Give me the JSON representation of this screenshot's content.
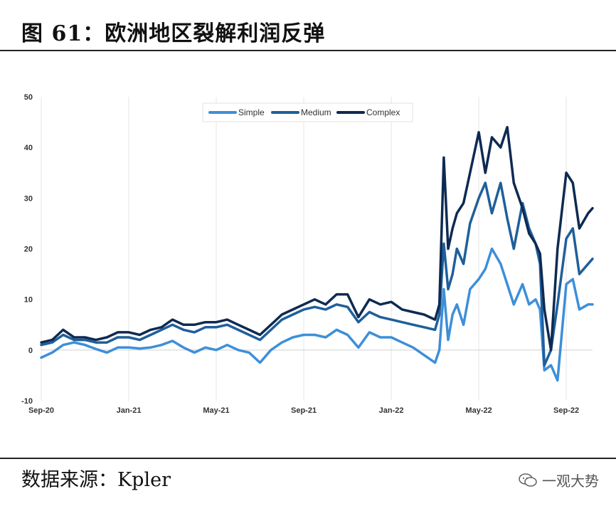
{
  "figure": {
    "title": "图 61：欧洲地区裂解利润反弹",
    "source": "数据来源：Kpler",
    "watermark": "一观大势"
  },
  "chart_data": {
    "type": "line",
    "title": "",
    "xlabel": "",
    "ylabel": "",
    "ylim": [
      -10,
      50
    ],
    "yticks": [
      -10,
      0,
      10,
      20,
      30,
      40,
      50
    ],
    "x_tick_labels": [
      "Sep-20",
      "Jan-21",
      "May-21",
      "Sep-21",
      "Jan-22",
      "May-22",
      "Sep-22"
    ],
    "x_range_months": [
      0,
      25.2
    ],
    "grid": "vertical",
    "legend_position": "top-center",
    "x": [
      0,
      0.5,
      1,
      1.5,
      2,
      2.5,
      3,
      3.5,
      4,
      4.5,
      5,
      5.5,
      6,
      6.5,
      7,
      7.5,
      8,
      8.5,
      9,
      9.5,
      10,
      10.5,
      11,
      11.5,
      12,
      12.5,
      13,
      13.5,
      14,
      14.5,
      15,
      15.5,
      16,
      16.5,
      17,
      17.5,
      18,
      18.2,
      18.4,
      18.6,
      18.8,
      19,
      19.3,
      19.6,
      20,
      20.3,
      20.6,
      21,
      21.3,
      21.6,
      22,
      22.3,
      22.6,
      22.8,
      23,
      23.3,
      23.6,
      24,
      24.3,
      24.6,
      25,
      25.2
    ],
    "series": [
      {
        "name": "Simple",
        "color": "#3d8fd9",
        "values": [
          -1.5,
          -0.5,
          1,
          1.5,
          1,
          0.2,
          -0.5,
          0.5,
          0.5,
          0.3,
          0.5,
          1,
          1.8,
          0.5,
          -0.5,
          0.5,
          0,
          1,
          0,
          -0.5,
          -2.5,
          0,
          1.5,
          2.5,
          3,
          3,
          2.5,
          4,
          3,
          0.5,
          3.5,
          2.5,
          2.5,
          1.5,
          0.5,
          -1,
          -2.5,
          0,
          12,
          2,
          7,
          9,
          5,
          12,
          14,
          16,
          20,
          17,
          13,
          9,
          13,
          9,
          10,
          8,
          -4,
          -3,
          -6,
          13,
          14,
          8,
          9,
          9
        ]
      },
      {
        "name": "Medium",
        "color": "#1f5f9a",
        "values": [
          1,
          1.5,
          3,
          2,
          2,
          1.5,
          1.5,
          2.5,
          2.5,
          2,
          3,
          4,
          5,
          4,
          3.5,
          4.5,
          4.5,
          5,
          4,
          3,
          2,
          4,
          6,
          7,
          8,
          8.5,
          8,
          9,
          8.5,
          5.5,
          7.5,
          6.5,
          6,
          5.5,
          5,
          4.5,
          4,
          7,
          21,
          12,
          15,
          20,
          17,
          25,
          30,
          33,
          27,
          33,
          26,
          20,
          29,
          24,
          21,
          17,
          -3,
          0,
          9,
          22,
          24,
          15,
          17,
          18
        ]
      },
      {
        "name": "Complex",
        "color": "#0e2a52",
        "values": [
          1.5,
          2,
          4,
          2.5,
          2.5,
          2,
          2.5,
          3.5,
          3.5,
          3,
          4,
          4.5,
          6,
          5,
          5,
          5.5,
          5.5,
          6,
          5,
          4,
          3,
          5,
          7,
          8,
          9,
          10,
          9,
          11,
          11,
          6.5,
          10,
          9,
          9.5,
          8,
          7.5,
          7,
          6,
          9,
          38,
          20,
          24,
          27,
          29,
          35,
          43,
          35,
          42,
          40,
          44,
          33,
          28,
          23,
          21,
          19,
          8,
          0,
          20,
          35,
          33,
          24,
          27,
          28
        ]
      }
    ]
  }
}
